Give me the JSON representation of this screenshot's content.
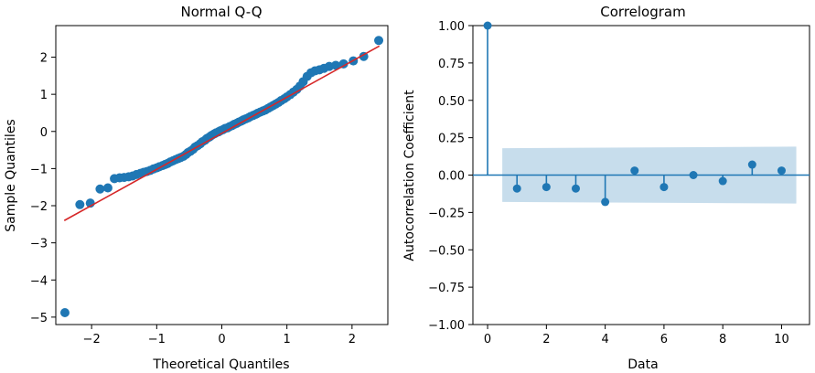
{
  "chart_data": [
    {
      "type": "scatter",
      "title": "Normal Q-Q",
      "xlabel": "Theoretical Quantiles",
      "ylabel": "Sample Quantiles",
      "xlim": [
        -2.55,
        2.55
      ],
      "ylim": [
        -5.2,
        2.85
      ],
      "xticks": [
        -2,
        -1,
        0,
        1,
        2
      ],
      "yticks": [
        -5,
        -4,
        -3,
        -2,
        -1,
        0,
        1,
        2
      ],
      "grid": false,
      "colors": {
        "points": "#1f77b4",
        "reference_line": "#d62728"
      },
      "reference_line": {
        "x": [
          -2.42,
          2.42
        ],
        "y": [
          -2.4,
          2.3
        ]
      },
      "points": [
        [
          -2.41,
          -4.88
        ],
        [
          -2.18,
          -1.97
        ],
        [
          -2.02,
          -1.93
        ],
        [
          -1.87,
          -1.55
        ],
        [
          -1.75,
          -1.52
        ],
        [
          -1.65,
          -1.27
        ],
        [
          -1.57,
          -1.25
        ],
        [
          -1.5,
          -1.24
        ],
        [
          -1.43,
          -1.22
        ],
        [
          -1.37,
          -1.2
        ],
        [
          -1.31,
          -1.16
        ],
        [
          -1.25,
          -1.13
        ],
        [
          -1.2,
          -1.1
        ],
        [
          -1.15,
          -1.08
        ],
        [
          -1.1,
          -1.05
        ],
        [
          -1.05,
          -1.01
        ],
        [
          -1.0,
          -0.98
        ],
        [
          -0.96,
          -0.95
        ],
        [
          -0.91,
          -0.92
        ],
        [
          -0.87,
          -0.89
        ],
        [
          -0.83,
          -0.86
        ],
        [
          -0.79,
          -0.82
        ],
        [
          -0.75,
          -0.79
        ],
        [
          -0.71,
          -0.76
        ],
        [
          -0.67,
          -0.73
        ],
        [
          -0.63,
          -0.7
        ],
        [
          -0.59,
          -0.67
        ],
        [
          -0.55,
          -0.62
        ],
        [
          -0.52,
          -0.57
        ],
        [
          -0.48,
          -0.53
        ],
        [
          -0.44,
          -0.48
        ],
        [
          -0.41,
          -0.42
        ],
        [
          -0.37,
          -0.38
        ],
        [
          -0.33,
          -0.33
        ],
        [
          -0.3,
          -0.28
        ],
        [
          -0.26,
          -0.24
        ],
        [
          -0.23,
          -0.19
        ],
        [
          -0.19,
          -0.15
        ],
        [
          -0.16,
          -0.11
        ],
        [
          -0.12,
          -0.07
        ],
        [
          -0.09,
          -0.04
        ],
        [
          -0.05,
          -0.01
        ],
        [
          -0.02,
          0.02
        ],
        [
          0.02,
          0.05
        ],
        [
          0.05,
          0.08
        ],
        [
          0.09,
          0.1
        ],
        [
          0.12,
          0.13
        ],
        [
          0.16,
          0.16
        ],
        [
          0.19,
          0.19
        ],
        [
          0.23,
          0.22
        ],
        [
          0.26,
          0.25
        ],
        [
          0.3,
          0.28
        ],
        [
          0.33,
          0.31
        ],
        [
          0.37,
          0.34
        ],
        [
          0.41,
          0.37
        ],
        [
          0.44,
          0.4
        ],
        [
          0.48,
          0.43
        ],
        [
          0.52,
          0.46
        ],
        [
          0.55,
          0.49
        ],
        [
          0.59,
          0.52
        ],
        [
          0.63,
          0.55
        ],
        [
          0.67,
          0.58
        ],
        [
          0.71,
          0.62
        ],
        [
          0.75,
          0.66
        ],
        [
          0.79,
          0.7
        ],
        [
          0.83,
          0.74
        ],
        [
          0.87,
          0.78
        ],
        [
          0.91,
          0.83
        ],
        [
          0.96,
          0.88
        ],
        [
          1.0,
          0.93
        ],
        [
          1.05,
          0.99
        ],
        [
          1.1,
          1.06
        ],
        [
          1.15,
          1.13
        ],
        [
          1.2,
          1.22
        ],
        [
          1.25,
          1.34
        ],
        [
          1.31,
          1.48
        ],
        [
          1.37,
          1.58
        ],
        [
          1.43,
          1.63
        ],
        [
          1.5,
          1.66
        ],
        [
          1.57,
          1.7
        ],
        [
          1.65,
          1.75
        ],
        [
          1.75,
          1.78
        ],
        [
          1.87,
          1.82
        ],
        [
          2.02,
          1.9
        ],
        [
          2.18,
          2.02
        ],
        [
          2.41,
          2.45
        ]
      ]
    },
    {
      "type": "stem",
      "title": "Correlogram",
      "xlabel": "Data",
      "ylabel": "Autocorrelation Coefficient",
      "xlim": [
        -0.5,
        10.95
      ],
      "ylim": [
        -1.0,
        1.0
      ],
      "xticks": [
        0,
        2,
        4,
        6,
        8,
        10
      ],
      "yticks": [
        -1.0,
        -0.75,
        -0.5,
        -0.25,
        0.0,
        0.25,
        0.5,
        0.75,
        1.0
      ],
      "ytick_labels": [
        "−1.00",
        "−0.75",
        "−0.50",
        "−0.25",
        "0.00",
        "0.25",
        "0.50",
        "0.75",
        "1.00"
      ],
      "grid": false,
      "colors": {
        "stems": "#1f77b4",
        "confidence_band": "#1f77b4"
      },
      "lags": [
        0,
        1,
        2,
        3,
        4,
        5,
        6,
        7,
        8,
        9,
        10
      ],
      "values": [
        1.0,
        -0.09,
        -0.08,
        -0.09,
        -0.18,
        0.03,
        -0.08,
        0.0,
        -0.04,
        0.07,
        0.03
      ],
      "confidence_band": {
        "x": [
          0.5,
          10.5
        ],
        "upper": [
          0.18,
          0.19
        ],
        "lower": [
          -0.18,
          -0.19
        ]
      }
    }
  ]
}
